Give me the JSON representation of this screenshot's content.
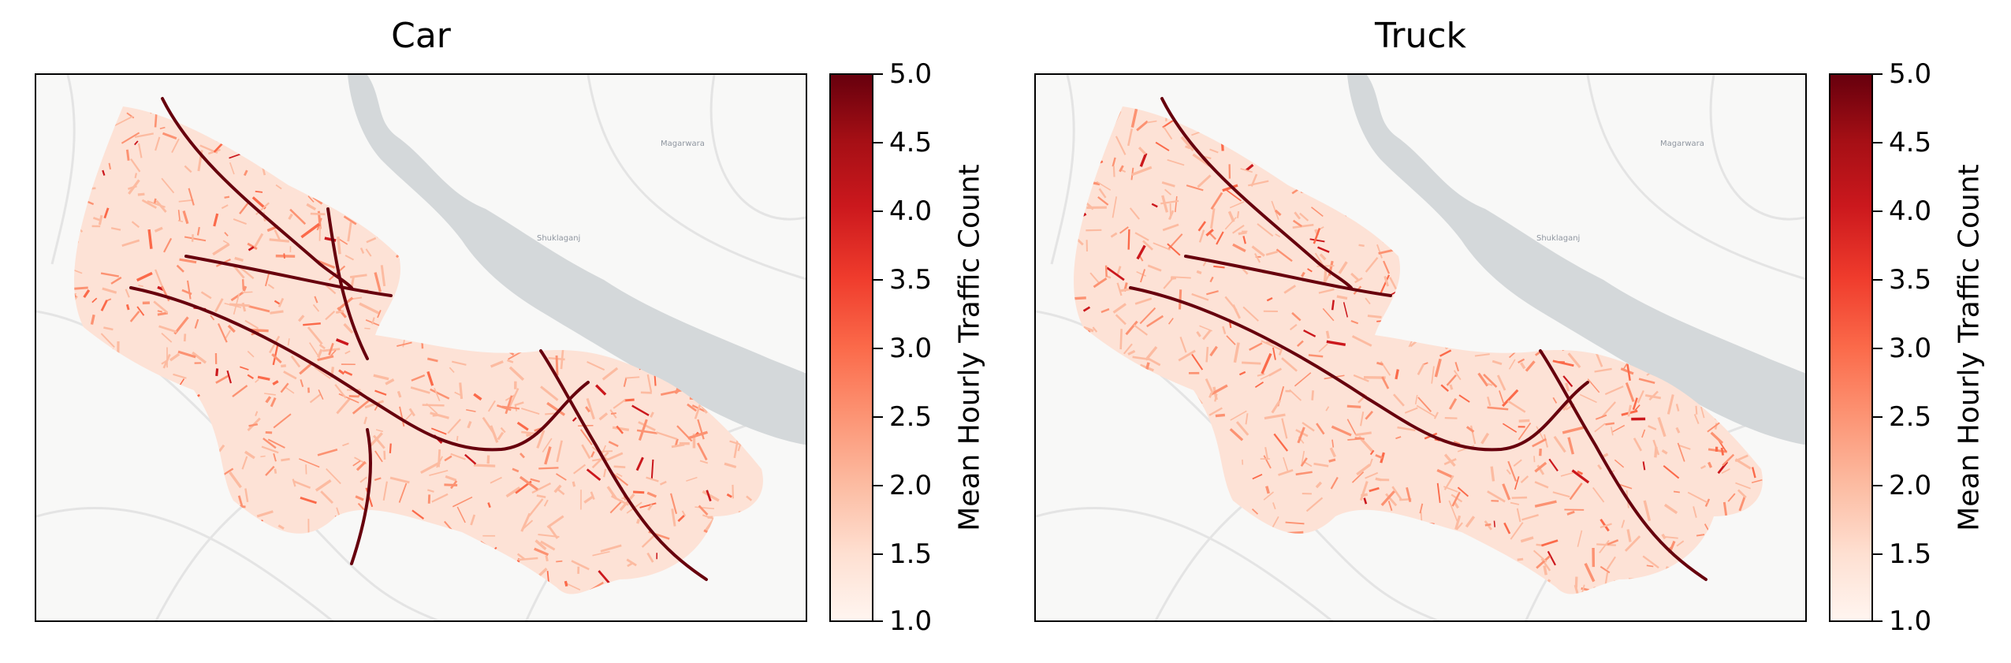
{
  "panels": [
    {
      "title": "Car",
      "colorbar": {
        "label": "Mean Hourly Traffic Count",
        "min": 1.0,
        "max": 5.0,
        "ticks": [
          "5.0",
          "4.5",
          "4.0",
          "3.5",
          "3.0",
          "2.5",
          "2.0",
          "1.5",
          "1.0"
        ]
      },
      "places": [
        "Magarwara",
        "Shuklaganj"
      ]
    },
    {
      "title": "Truck",
      "colorbar": {
        "label": "Mean Hourly Traffic Count",
        "min": 1.0,
        "max": 5.0,
        "ticks": [
          "5.0",
          "4.5",
          "4.0",
          "3.5",
          "3.0",
          "2.5",
          "2.0",
          "1.5",
          "1.0"
        ]
      },
      "places": [
        "Magarwara",
        "Shuklaganj"
      ]
    }
  ],
  "colorscale": {
    "name": "Reds",
    "colors": [
      "#fff5f0",
      "#fee0d2",
      "#fcbba1",
      "#fc9272",
      "#fb6a4a",
      "#ef3b2c",
      "#cb181d",
      "#a50f15",
      "#67000d"
    ]
  },
  "basemap": {
    "land_color": "#f8f8f7",
    "water_color": "#d4d8da",
    "road_color": "#e6e6e6"
  }
}
